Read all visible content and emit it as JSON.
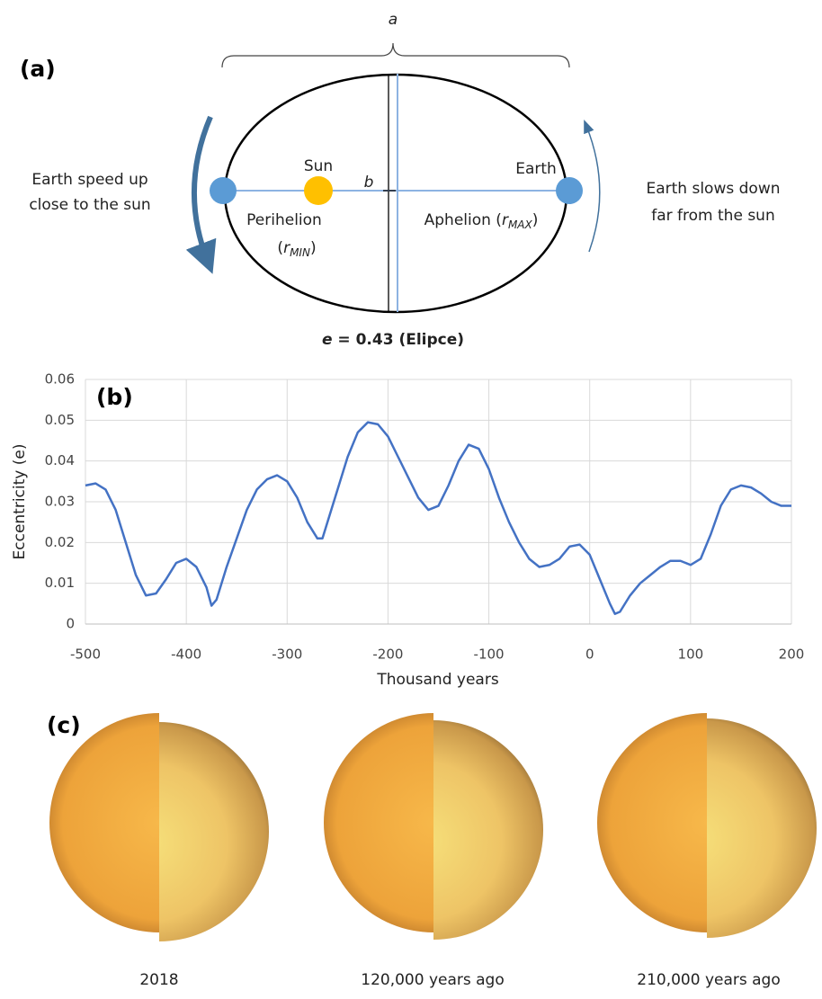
{
  "panel_a": {
    "label": "(a)",
    "a_label": "a",
    "b_label": "b",
    "left_text": [
      "Earth speed up",
      "close to the sun"
    ],
    "right_text": [
      "Earth slows down",
      "far from the sun"
    ],
    "sun": "Sun",
    "earth": "Earth",
    "perihelion": "Perihelion",
    "perihelion_r": [
      "(",
      "r",
      "MIN",
      ")"
    ],
    "aphelion_r": [
      "Aphelion (",
      "r",
      "MAX",
      ")"
    ],
    "eccentricity": [
      "e",
      " = 0.43 (Elipce)"
    ]
  },
  "chart_data": {
    "type": "line",
    "title": "(b)",
    "x_label": "Thousand years",
    "y_label": "Eccentricity (e)",
    "x": [
      -500,
      -490,
      -480,
      -470,
      -460,
      -450,
      -440,
      -430,
      -420,
      -410,
      -400,
      -390,
      -380,
      -375,
      -370,
      -360,
      -350,
      -340,
      -330,
      -320,
      -310,
      -300,
      -290,
      -280,
      -270,
      -265,
      -260,
      -250,
      -240,
      -230,
      -220,
      -210,
      -200,
      -190,
      -180,
      -170,
      -160,
      -150,
      -140,
      -130,
      -120,
      -110,
      -100,
      -90,
      -80,
      -70,
      -60,
      -50,
      -40,
      -30,
      -20,
      -10,
      0,
      10,
      20,
      25,
      30,
      40,
      50,
      60,
      70,
      80,
      90,
      100,
      110,
      120,
      130,
      140,
      150,
      160,
      170,
      180,
      190,
      200
    ],
    "values": [
      0.034,
      0.0345,
      0.033,
      0.028,
      0.02,
      0.012,
      0.007,
      0.0075,
      0.011,
      0.015,
      0.016,
      0.014,
      0.009,
      0.0045,
      0.006,
      0.014,
      0.021,
      0.028,
      0.033,
      0.0355,
      0.0365,
      0.035,
      0.031,
      0.025,
      0.021,
      0.021,
      0.025,
      0.033,
      0.041,
      0.047,
      0.0495,
      0.049,
      0.046,
      0.041,
      0.036,
      0.031,
      0.028,
      0.029,
      0.034,
      0.04,
      0.044,
      0.043,
      0.038,
      0.031,
      0.025,
      0.02,
      0.016,
      0.014,
      0.0145,
      0.016,
      0.019,
      0.0195,
      0.017,
      0.011,
      0.005,
      0.0025,
      0.003,
      0.007,
      0.01,
      0.012,
      0.014,
      0.0155,
      0.0155,
      0.0145,
      0.016,
      0.022,
      0.029,
      0.033,
      0.034,
      0.0335,
      0.032,
      0.03,
      0.029,
      0.029
    ],
    "color": "#4472c4",
    "xlim": [
      -500,
      200
    ],
    "xticks": [
      -500,
      -400,
      -300,
      -200,
      -100,
      0,
      100,
      200
    ],
    "ylim": [
      0,
      0.06
    ],
    "yticks": [
      0,
      0.01,
      0.02,
      0.03,
      0.04,
      0.05,
      0.06
    ],
    "grid": true
  },
  "panel_c": {
    "label": "(c)",
    "captions": [
      "2018",
      "120,000 years ago",
      "210,000 years ago"
    ]
  }
}
